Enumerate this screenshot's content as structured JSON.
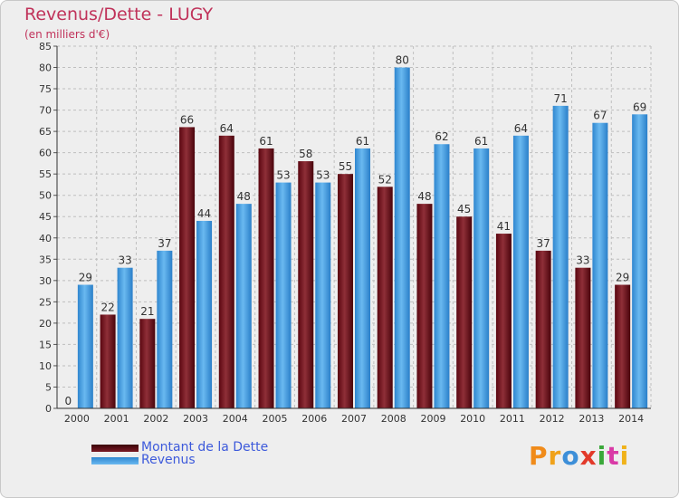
{
  "header": {
    "title": "Revenus/Dette - LUGY",
    "subtitle": "(en milliers d'€)"
  },
  "legend": [
    {
      "label": "Montant de la Dette",
      "color": "#6b0a16"
    },
    {
      "label": "Revenus",
      "color": "#4aa3e6"
    }
  ],
  "logo": {
    "letters": [
      "P",
      "r",
      "o",
      "x",
      "i",
      "t",
      "i"
    ],
    "colors": [
      "#f08b1a",
      "#f0a21a",
      "#3d8fd8",
      "#e23a2a",
      "#3aa83a",
      "#d93aa6",
      "#f0b21a"
    ]
  },
  "colors": {
    "title": "#c0325a",
    "axis_text": "#333333",
    "grid": "#bfbfbf",
    "debt_dark": "#5a0610",
    "debt_light": "#963c44",
    "rev_dark": "#2f86cf",
    "rev_light": "#6ab9f0"
  },
  "chart_data": {
    "type": "bar",
    "categories": [
      "2000",
      "2001",
      "2002",
      "2003",
      "2004",
      "2005",
      "2006",
      "2007",
      "2008",
      "2009",
      "2010",
      "2011",
      "2012",
      "2013",
      "2014"
    ],
    "series": [
      {
        "name": "Montant de la Dette",
        "values": [
          0,
          22,
          21,
          66,
          64,
          61,
          58,
          55,
          52,
          48,
          45,
          41,
          37,
          33,
          29
        ]
      },
      {
        "name": "Revenus",
        "values": [
          29,
          33,
          37,
          44,
          48,
          53,
          53,
          61,
          80,
          62,
          61,
          64,
          71,
          67,
          69
        ]
      }
    ],
    "title": "Revenus/Dette - LUGY",
    "ylabel": "(en milliers d'€)",
    "ylim": [
      0,
      85
    ],
    "yticks": [
      0,
      5,
      10,
      15,
      20,
      25,
      30,
      35,
      40,
      45,
      50,
      55,
      60,
      65,
      70,
      75,
      80,
      85
    ],
    "grid": true,
    "legend_position": "bottom-left"
  }
}
